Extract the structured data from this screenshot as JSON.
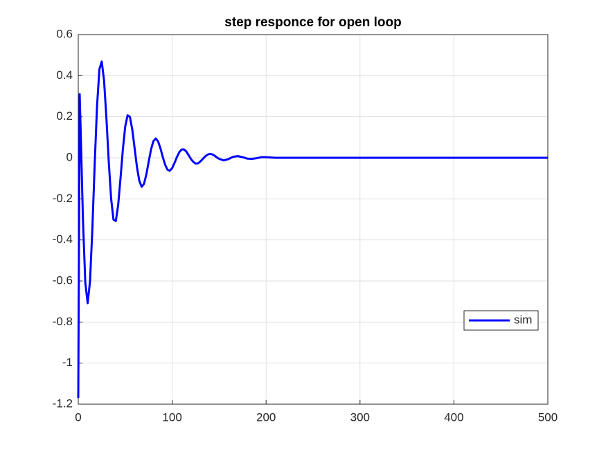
{
  "chart_data": {
    "type": "line",
    "title": "step responce for open loop",
    "x": [
      0,
      1.5,
      2.5,
      5,
      7.5,
      10,
      12.5,
      15,
      17.5,
      20,
      22.5,
      25,
      27.5,
      30,
      32.5,
      35,
      37.5,
      40,
      42.5,
      45,
      47.5,
      50,
      52.5,
      55,
      57.5,
      60,
      62.5,
      65,
      67.5,
      70,
      72.5,
      75,
      77.5,
      80,
      82.5,
      85,
      87.5,
      90,
      92.5,
      95,
      97.5,
      100,
      102.5,
      105,
      107.5,
      110,
      112.5,
      115,
      117.5,
      120,
      122.5,
      125,
      127.5,
      130,
      132.5,
      135,
      137.5,
      140,
      142.5,
      145,
      147.5,
      150,
      155,
      160,
      165,
      170,
      175,
      180,
      185,
      190,
      195,
      200,
      210,
      230,
      260,
      300,
      350,
      400,
      450,
      500
    ],
    "series": [
      {
        "name": "sim",
        "color": "#0000ff",
        "values": [
          -1.17,
          0.31,
          0.143,
          -0.302,
          -0.608,
          -0.708,
          -0.603,
          -0.348,
          -0.031,
          0.252,
          0.431,
          0.469,
          0.375,
          0.191,
          -0.021,
          -0.199,
          -0.301,
          -0.308,
          -0.23,
          -0.099,
          0.041,
          0.152,
          0.207,
          0.199,
          0.138,
          0.047,
          -0.045,
          -0.112,
          -0.141,
          -0.127,
          -0.081,
          -0.019,
          0.041,
          0.081,
          0.094,
          0.08,
          0.046,
          0.004,
          -0.034,
          -0.058,
          -0.063,
          -0.05,
          -0.025,
          0.003,
          0.027,
          0.04,
          0.041,
          0.031,
          0.013,
          -0.006,
          -0.02,
          -0.028,
          -0.027,
          -0.018,
          -0.006,
          0.006,
          0.015,
          0.019,
          0.017,
          0.011,
          0.002,
          -0.005,
          -0.013,
          -0.006,
          0.005,
          0.008,
          0.003,
          -0.004,
          -0.005,
          -0.002,
          0.003,
          0.003,
          0,
          0,
          0,
          0,
          0,
          0,
          0,
          0
        ]
      }
    ],
    "xlim": [
      0,
      500
    ],
    "xticks": [
      0,
      100,
      200,
      300,
      400,
      500
    ],
    "ylim": [
      -1.2,
      0.6
    ],
    "yticks": [
      -1.2,
      -1,
      -0.8,
      -0.6,
      -0.4,
      -0.2,
      0,
      0.2,
      0.4,
      0.6
    ],
    "grid": true,
    "legend": "southeast"
  }
}
